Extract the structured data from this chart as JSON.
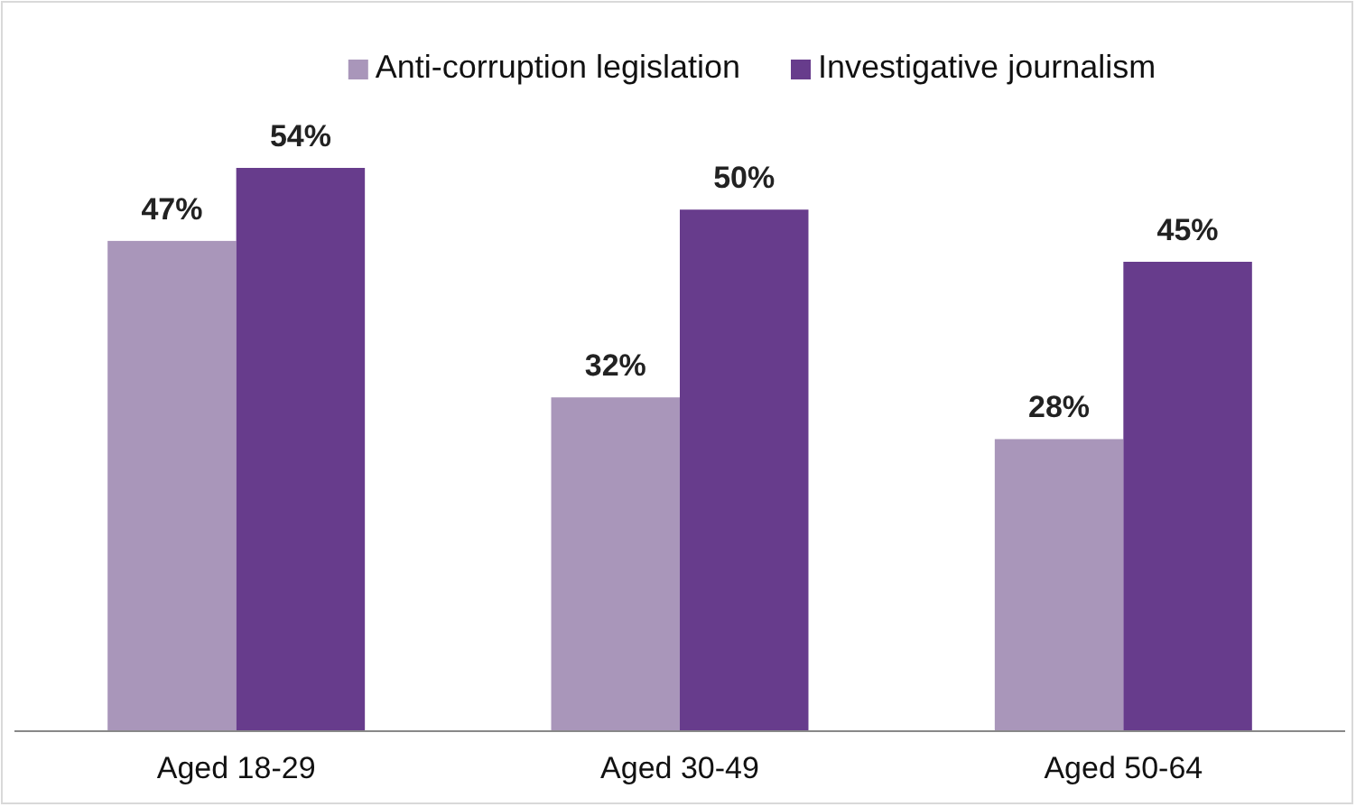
{
  "chart_data": {
    "type": "bar",
    "categories": [
      "Aged 18-29",
      "Aged 30-49",
      "Aged 50-64"
    ],
    "series": [
      {
        "name": "Anti-corruption legislation",
        "color": "#a996ba",
        "values": [
          47,
          32,
          28
        ],
        "value_labels": [
          "47%",
          "32%",
          "28%"
        ]
      },
      {
        "name": "Investigative journalism",
        "color": "#673c8c",
        "values": [
          54,
          50,
          45
        ],
        "value_labels": [
          "54%",
          "50%",
          "45%"
        ]
      }
    ],
    "legend": "top"
  }
}
